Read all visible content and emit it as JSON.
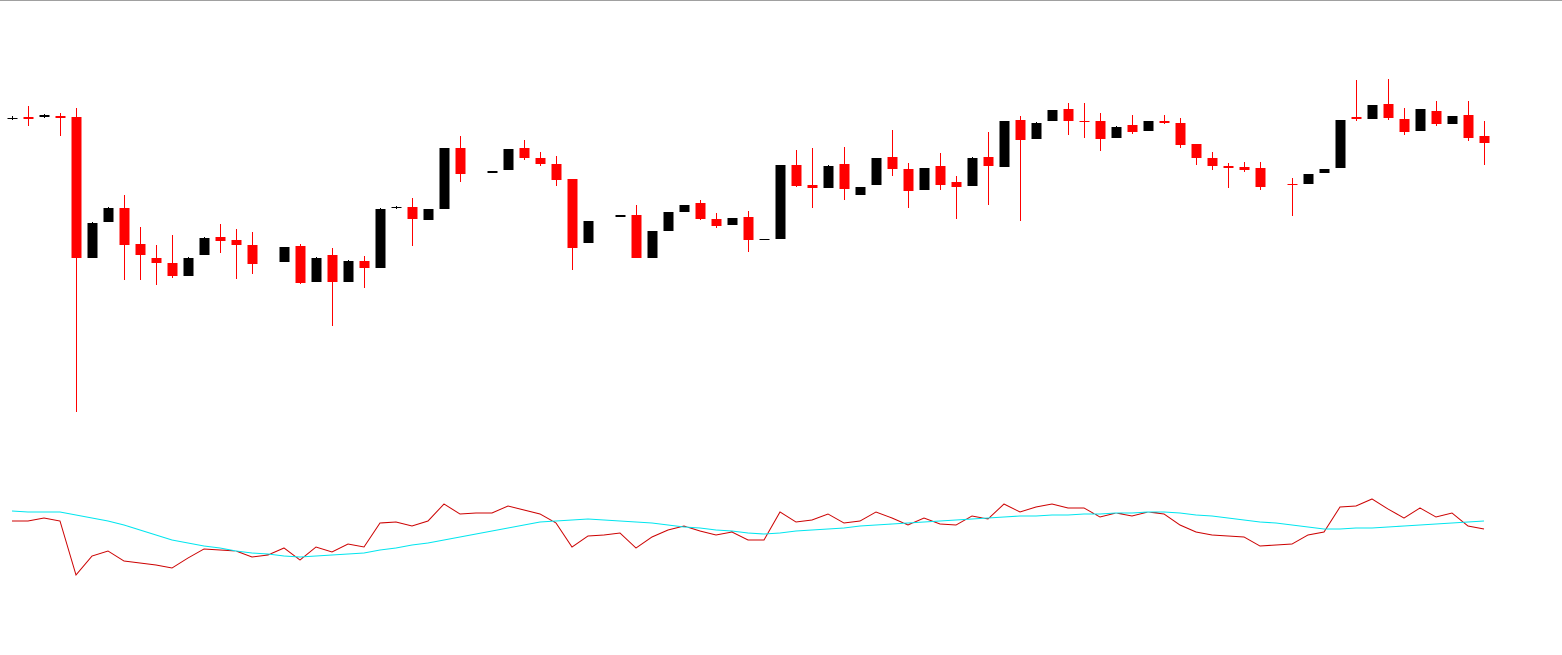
{
  "chart_data": [
    {
      "type": "candlestick",
      "up_color": "#000000",
      "down_color": "#ff0000",
      "ylim": [
        80,
        430
      ],
      "open": [
        382,
        383,
        383,
        384,
        383,
        242,
        278,
        292,
        256,
        242,
        237,
        224,
        245,
        263,
        260,
        255,
        null,
        238,
        254,
        218,
        245,
        218,
        239,
        232,
        292,
        293,
        280,
        291,
        352,
        null,
        327,
        330,
        352,
        342,
        336,
        321,
        257,
        null,
        283,
        285,
        242,
        269,
        288,
        297,
        281,
        275,
        283,
        260,
        261,
        335,
        315,
        312,
        336,
        305,
        315,
        343,
        331,
        310,
        334,
        318,
        314,
        343,
        333,
        380,
        361,
        379,
        391,
        379,
        379,
        362,
        375,
        369,
        379,
        377,
        356,
        342,
        334,
        333,
        332,
        null,
        316,
        316,
        327,
        332,
        383,
        381,
        396,
        381,
        369,
        389,
        376,
        385,
        364
      ],
      "high": [
        384,
        394,
        386,
        387,
        392,
        278,
        293,
        305,
        273,
        255,
        265,
        243,
        263,
        276,
        271,
        268,
        null,
        253,
        256,
        243,
        252,
        240,
        244,
        292,
        294,
        302,
        291,
        352,
        364,
        null,
        329,
        351,
        360,
        348,
        344,
        321,
        279,
        null,
        285,
        295,
        269,
        288,
        295,
        300,
        287,
        282,
        289,
        261,
        335,
        350,
        352,
        335,
        353,
        313,
        342,
        370,
        337,
        332,
        347,
        324,
        343,
        368,
        379,
        384,
        378,
        390,
        397,
        397,
        387,
        374,
        385,
        379,
        385,
        382,
        356,
        348,
        337,
        338,
        338,
        null,
        322,
        326,
        331,
        380,
        420,
        395,
        421,
        392,
        391,
        399,
        384,
        399,
        379
      ],
      "low": [
        380,
        374,
        382,
        364,
        88,
        242,
        278,
        220,
        220,
        215,
        222,
        224,
        245,
        247,
        221,
        226,
        null,
        238,
        216,
        218,
        174,
        218,
        212,
        232,
        291,
        254,
        280,
        291,
        318,
        null,
        327,
        330,
        340,
        334,
        314,
        230,
        257,
        null,
        283,
        242,
        242,
        269,
        288,
        280,
        272,
        275,
        248,
        260,
        261,
        313,
        292,
        312,
        300,
        305,
        315,
        324,
        292,
        310,
        310,
        281,
        314,
        295,
        333,
        279,
        361,
        379,
        365,
        362,
        349,
        362,
        366,
        369,
        376,
        352,
        335,
        330,
        312,
        328,
        310,
        null,
        284,
        316,
        327,
        332,
        379,
        381,
        380,
        365,
        369,
        374,
        376,
        359,
        335
      ],
      "close": [
        382,
        381,
        385,
        382,
        242,
        277,
        292,
        255,
        245,
        237,
        224,
        242,
        262,
        259,
        255,
        236,
        null,
        253,
        217,
        242,
        218,
        239,
        232,
        291,
        293,
        281,
        291,
        352,
        326,
        null,
        329,
        351,
        342,
        336,
        320,
        252,
        279,
        null,
        285,
        242,
        269,
        288,
        295,
        281,
        274,
        282,
        260,
        261,
        335,
        314,
        312,
        334,
        311,
        313,
        342,
        331,
        309,
        332,
        315,
        313,
        342,
        334,
        379,
        360,
        377,
        390,
        379,
        378,
        361,
        373,
        368,
        379,
        377,
        355,
        342,
        334,
        332,
        330,
        313,
        null,
        315,
        326,
        331,
        380,
        381,
        395,
        382,
        368,
        391,
        376,
        384,
        362,
        357
      ]
    },
    {
      "type": "line",
      "ylim": [
        10,
        110
      ],
      "series": [
        {
          "color": "#cc0000",
          "values": [
            79,
            79,
            82,
            79,
            25,
            44,
            49,
            39,
            37,
            35,
            32,
            42,
            51,
            50,
            49,
            43,
            45,
            52,
            40,
            53,
            48,
            56,
            53,
            77,
            78,
            74,
            79,
            96,
            86,
            87,
            87,
            94,
            90,
            86,
            77,
            53,
            64,
            65,
            67,
            52,
            63,
            70,
            74,
            69,
            65,
            68,
            60,
            60,
            88,
            78,
            80,
            86,
            77,
            79,
            88,
            82,
            75,
            82,
            76,
            75,
            84,
            81,
            96,
            88,
            93,
            96,
            92,
            92,
            83,
            87,
            84,
            88,
            86,
            75,
            68,
            65,
            64,
            63,
            54,
            55,
            56,
            65,
            68,
            93,
            94,
            101,
            91,
            82,
            92,
            83,
            87,
            74,
            71
          ]
        },
        {
          "color": "#00e5ee",
          "values": [
            89,
            88,
            88,
            88,
            85,
            82,
            79,
            75,
            70,
            65,
            60,
            57,
            54,
            52,
            49,
            47,
            46,
            44,
            43,
            44,
            45,
            46,
            47,
            50,
            52,
            55,
            57,
            60,
            63,
            66,
            69,
            72,
            75,
            78,
            79,
            80,
            81,
            80,
            79,
            78,
            77,
            75,
            73,
            72,
            70,
            69,
            67,
            66,
            67,
            69,
            70,
            71,
            72,
            74,
            75,
            76,
            77,
            78,
            79,
            80,
            81,
            82,
            83,
            84,
            84,
            85,
            85,
            86,
            86,
            87,
            87,
            88,
            88,
            87,
            85,
            84,
            82,
            80,
            78,
            77,
            75,
            73,
            71,
            71,
            72,
            72,
            73,
            74,
            75,
            76,
            77,
            78,
            79
          ]
        }
      ]
    }
  ]
}
